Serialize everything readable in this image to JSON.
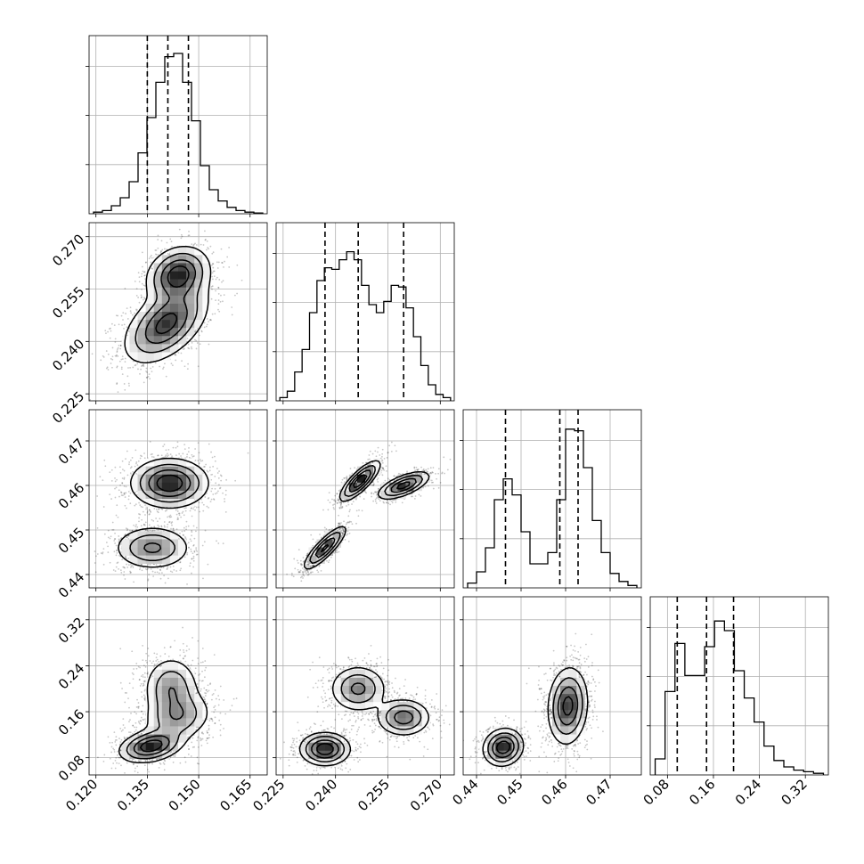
{
  "chart_data": {
    "type": "corner",
    "title": "",
    "parameters": [
      {
        "ticks": [
          "0.120",
          "0.135",
          "0.150",
          "0.165"
        ],
        "tick_values": [
          0.12,
          0.135,
          0.15,
          0.165
        ],
        "range": [
          0.118,
          0.17
        ],
        "quantiles": [
          0.135,
          0.141,
          0.147
        ]
      },
      {
        "ticks": [
          "0.225",
          "0.240",
          "0.255",
          "0.270"
        ],
        "tick_values": [
          0.225,
          0.24,
          0.255,
          0.27
        ],
        "range": [
          0.223,
          0.274
        ],
        "quantiles": [
          0.237,
          0.2465,
          0.2595
        ]
      },
      {
        "ticks": [
          "0.44",
          "0.45",
          "0.46",
          "0.47"
        ],
        "tick_values": [
          0.44,
          0.45,
          0.46,
          0.47
        ],
        "range": [
          0.437,
          0.477
        ],
        "quantiles": [
          0.4465,
          0.4587,
          0.4628
        ]
      },
      {
        "ticks": [
          "0.08",
          "0.16",
          "0.24",
          "0.32"
        ],
        "tick_values": [
          0.08,
          0.16,
          0.24,
          0.32
        ],
        "range": [
          0.05,
          0.36
        ],
        "quantiles": [
          0.097,
          0.148,
          0.195
        ]
      }
    ],
    "histograms": [
      {
        "param": 0,
        "counts": [
          0.01,
          0.02,
          0.05,
          0.1,
          0.2,
          0.38,
          0.6,
          0.82,
          0.98,
          1.0,
          0.82,
          0.58,
          0.3,
          0.15,
          0.08,
          0.04,
          0.02,
          0.01,
          0.005
        ]
      },
      {
        "param": 1,
        "counts": [
          0.02,
          0.06,
          0.18,
          0.32,
          0.55,
          0.75,
          0.83,
          0.82,
          0.88,
          0.93,
          0.88,
          0.72,
          0.6,
          0.55,
          0.62,
          0.72,
          0.71,
          0.58,
          0.4,
          0.22,
          0.1,
          0.04,
          0.02
        ]
      },
      {
        "param": 2,
        "counts": [
          0.03,
          0.1,
          0.25,
          0.55,
          0.68,
          0.58,
          0.35,
          0.15,
          0.15,
          0.22,
          0.55,
          0.99,
          0.98,
          0.75,
          0.42,
          0.22,
          0.09,
          0.04,
          0.015
        ]
      },
      {
        "param": 3,
        "counts": [
          0.1,
          0.52,
          0.82,
          0.62,
          0.62,
          0.8,
          0.96,
          0.9,
          0.65,
          0.48,
          0.33,
          0.18,
          0.09,
          0.05,
          0.03,
          0.02,
          0.01
        ]
      }
    ],
    "pairs": [
      {
        "x": 0,
        "y": 1,
        "modes": [
          {
            "mean": [
              0.1405,
              0.245
            ],
            "sd": [
              0.006,
              0.0055
            ],
            "rho": 0.5,
            "w": 0.6
          },
          {
            "mean": [
              0.144,
              0.259
            ],
            "sd": [
              0.0045,
              0.004
            ],
            "rho": 0.2,
            "w": 0.4
          }
        ]
      },
      {
        "x": 0,
        "y": 2,
        "modes": [
          {
            "mean": [
              0.1415,
              0.4605
            ],
            "sd": [
              0.0055,
              0.0027
            ],
            "rho": 0.0,
            "w": 0.65
          },
          {
            "mean": [
              0.1365,
              0.446
            ],
            "sd": [
              0.0055,
              0.0024
            ],
            "rho": 0.0,
            "w": 0.35
          }
        ]
      },
      {
        "x": 0,
        "y": 3,
        "modes": [
          {
            "mean": [
              0.142,
              0.2
            ],
            "sd": [
              0.004,
              0.028
            ],
            "rho": 0.0,
            "w": 0.35
          },
          {
            "mean": [
              0.144,
              0.15
            ],
            "sd": [
              0.005,
              0.022
            ],
            "rho": 0.2,
            "w": 0.3
          },
          {
            "mean": [
              0.136,
              0.1
            ],
            "sd": [
              0.0045,
              0.014
            ],
            "rho": 0.3,
            "w": 0.35
          }
        ]
      },
      {
        "x": 1,
        "y": 2,
        "modes": [
          {
            "mean": [
              0.247,
              0.461
            ],
            "sd": [
              0.0028,
              0.0022
            ],
            "rho": 0.8,
            "w": 0.35
          },
          {
            "mean": [
              0.2595,
              0.46
            ],
            "sd": [
              0.0036,
              0.0015
            ],
            "rho": 0.65,
            "w": 0.35
          },
          {
            "mean": [
              0.237,
              0.446
            ],
            "sd": [
              0.003,
              0.0024
            ],
            "rho": 0.85,
            "w": 0.3
          }
        ]
      },
      {
        "x": 1,
        "y": 3,
        "modes": [
          {
            "mean": [
              0.2465,
              0.2
            ],
            "sd": [
              0.004,
              0.02
            ],
            "rho": 0.0,
            "w": 0.35
          },
          {
            "mean": [
              0.2595,
              0.15
            ],
            "sd": [
              0.0038,
              0.016
            ],
            "rho": 0.0,
            "w": 0.3
          },
          {
            "mean": [
              0.237,
              0.095
            ],
            "sd": [
              0.0035,
              0.014
            ],
            "rho": 0.0,
            "w": 0.35
          }
        ]
      },
      {
        "x": 2,
        "y": 3,
        "modes": [
          {
            "mean": [
              0.4605,
              0.17
            ],
            "sd": [
              0.0022,
              0.033
            ],
            "rho": 0.1,
            "w": 0.65
          },
          {
            "mean": [
              0.446,
              0.098
            ],
            "sd": [
              0.0022,
              0.016
            ],
            "rho": 0.1,
            "w": 0.35
          }
        ]
      }
    ],
    "grid": true,
    "legend": "none"
  }
}
